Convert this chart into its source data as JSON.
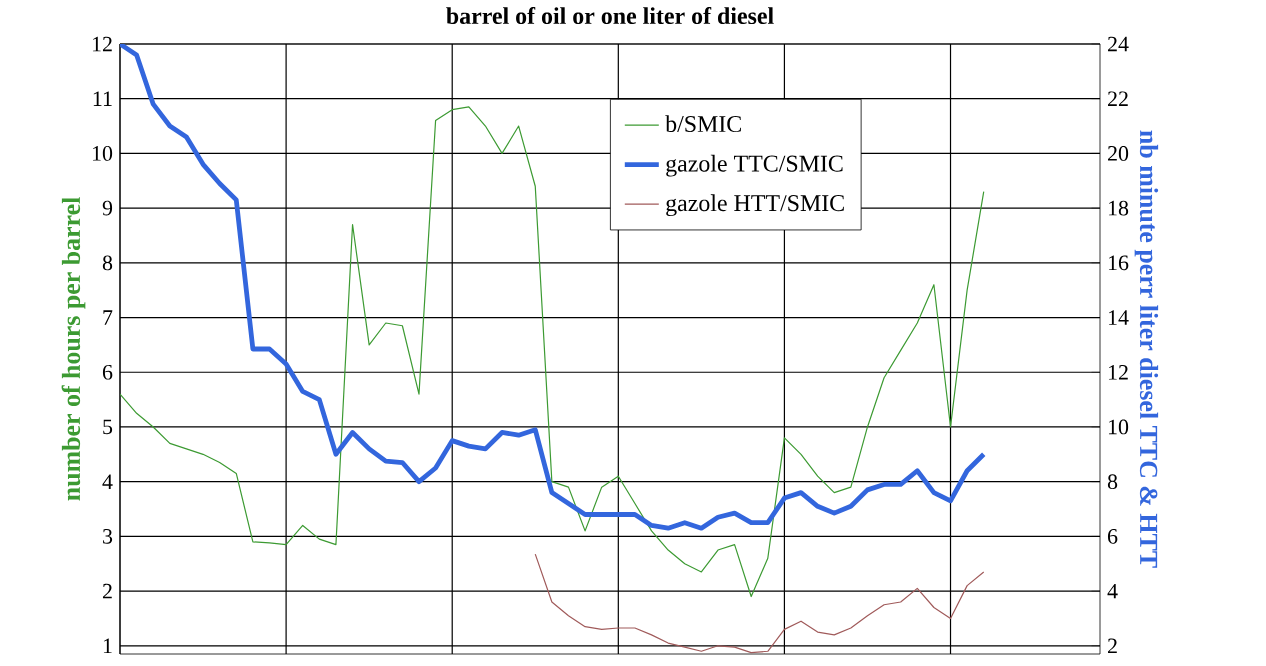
{
  "chart_data": {
    "type": "line",
    "title": "barrel of oil or one liter of diesel",
    "ylabel": "number of hours per barrel",
    "y2label": "nb minute perr liter diesel TTC & HTT",
    "categories": [
      null,
      null,
      null,
      null,
      null,
      null,
      null,
      null,
      null,
      null,
      null,
      null,
      null,
      null,
      null,
      null,
      null,
      null,
      null,
      null,
      null,
      null,
      null,
      null,
      null,
      null,
      null,
      null,
      null,
      null,
      null,
      null,
      null,
      null,
      null,
      null,
      null,
      null,
      null,
      null,
      null,
      null,
      null,
      null,
      null,
      null,
      null,
      null,
      null,
      null,
      null,
      null,
      null,
      null,
      null,
      null,
      null,
      null,
      null,
      null
    ],
    "series": [
      {
        "name": "b/SMIC",
        "color": "#3c9a32",
        "values": [
          5.6,
          5.25,
          5.0,
          4.7,
          4.6,
          4.5,
          4.35,
          4.15,
          2.9,
          2.88,
          2.85,
          3.2,
          2.95,
          2.85,
          8.7,
          6.5,
          6.9,
          6.85,
          5.6,
          10.6,
          10.8,
          10.85,
          10.5,
          10.0,
          10.5,
          9.4,
          4.0,
          3.9,
          3.1,
          3.9,
          4.1,
          3.6,
          3.1,
          2.75,
          2.5,
          2.35,
          2.75,
          2.85,
          1.9,
          2.6,
          4.8,
          4.5,
          4.1,
          3.8,
          3.9,
          5.0,
          5.9,
          6.4,
          6.9,
          7.6,
          5.0,
          7.5,
          9.3,
          null,
          null,
          null,
          null,
          null,
          null,
          null
        ]
      },
      {
        "name": "gazole TTC/SMIC",
        "color": "#3366dd",
        "axis": "y2",
        "values": [
          24,
          23.6,
          21.8,
          21.0,
          20.6,
          19.6,
          18.9,
          18.3,
          12.85,
          12.85,
          12.3,
          11.3,
          11.0,
          9.0,
          9.8,
          9.2,
          8.75,
          8.7,
          8.0,
          8.5,
          9.5,
          9.3,
          9.2,
          9.8,
          9.7,
          9.9,
          7.6,
          7.2,
          6.8,
          6.8,
          6.8,
          6.8,
          6.4,
          6.3,
          6.5,
          6.3,
          6.7,
          6.85,
          6.5,
          6.5,
          7.4,
          7.6,
          7.1,
          6.85,
          7.1,
          7.7,
          7.9,
          7.9,
          8.4,
          7.6,
          7.3,
          8.4,
          9.0,
          null,
          null,
          null,
          null,
          null,
          null,
          null
        ]
      },
      {
        "name": "gazole HTT/SMIC",
        "color": "#a05a5a",
        "axis": "y2",
        "values": [
          null,
          null,
          null,
          null,
          null,
          null,
          null,
          null,
          null,
          null,
          null,
          null,
          null,
          null,
          null,
          null,
          null,
          null,
          null,
          null,
          null,
          null,
          null,
          null,
          null,
          5.35,
          3.6,
          3.1,
          2.7,
          2.6,
          2.65,
          2.65,
          2.4,
          2.1,
          1.95,
          1.8,
          2.0,
          1.95,
          1.75,
          1.8,
          2.6,
          2.9,
          2.5,
          2.4,
          2.65,
          3.1,
          3.5,
          3.6,
          4.1,
          3.4,
          3.0,
          4.2,
          4.7,
          null,
          null,
          null,
          null,
          null,
          null,
          null
        ]
      }
    ],
    "ylim": [
      0.85,
      12
    ],
    "yticks": [
      1,
      2,
      3,
      4,
      5,
      6,
      7,
      8,
      9,
      10,
      11,
      12
    ],
    "y2lim": [
      1.7,
      24
    ],
    "y2ticks": [
      2,
      4,
      6,
      8,
      10,
      12,
      14,
      16,
      18,
      20,
      22,
      24
    ],
    "grid": true,
    "legend": "top",
    "marker": "none",
    "line_style": "solid"
  }
}
